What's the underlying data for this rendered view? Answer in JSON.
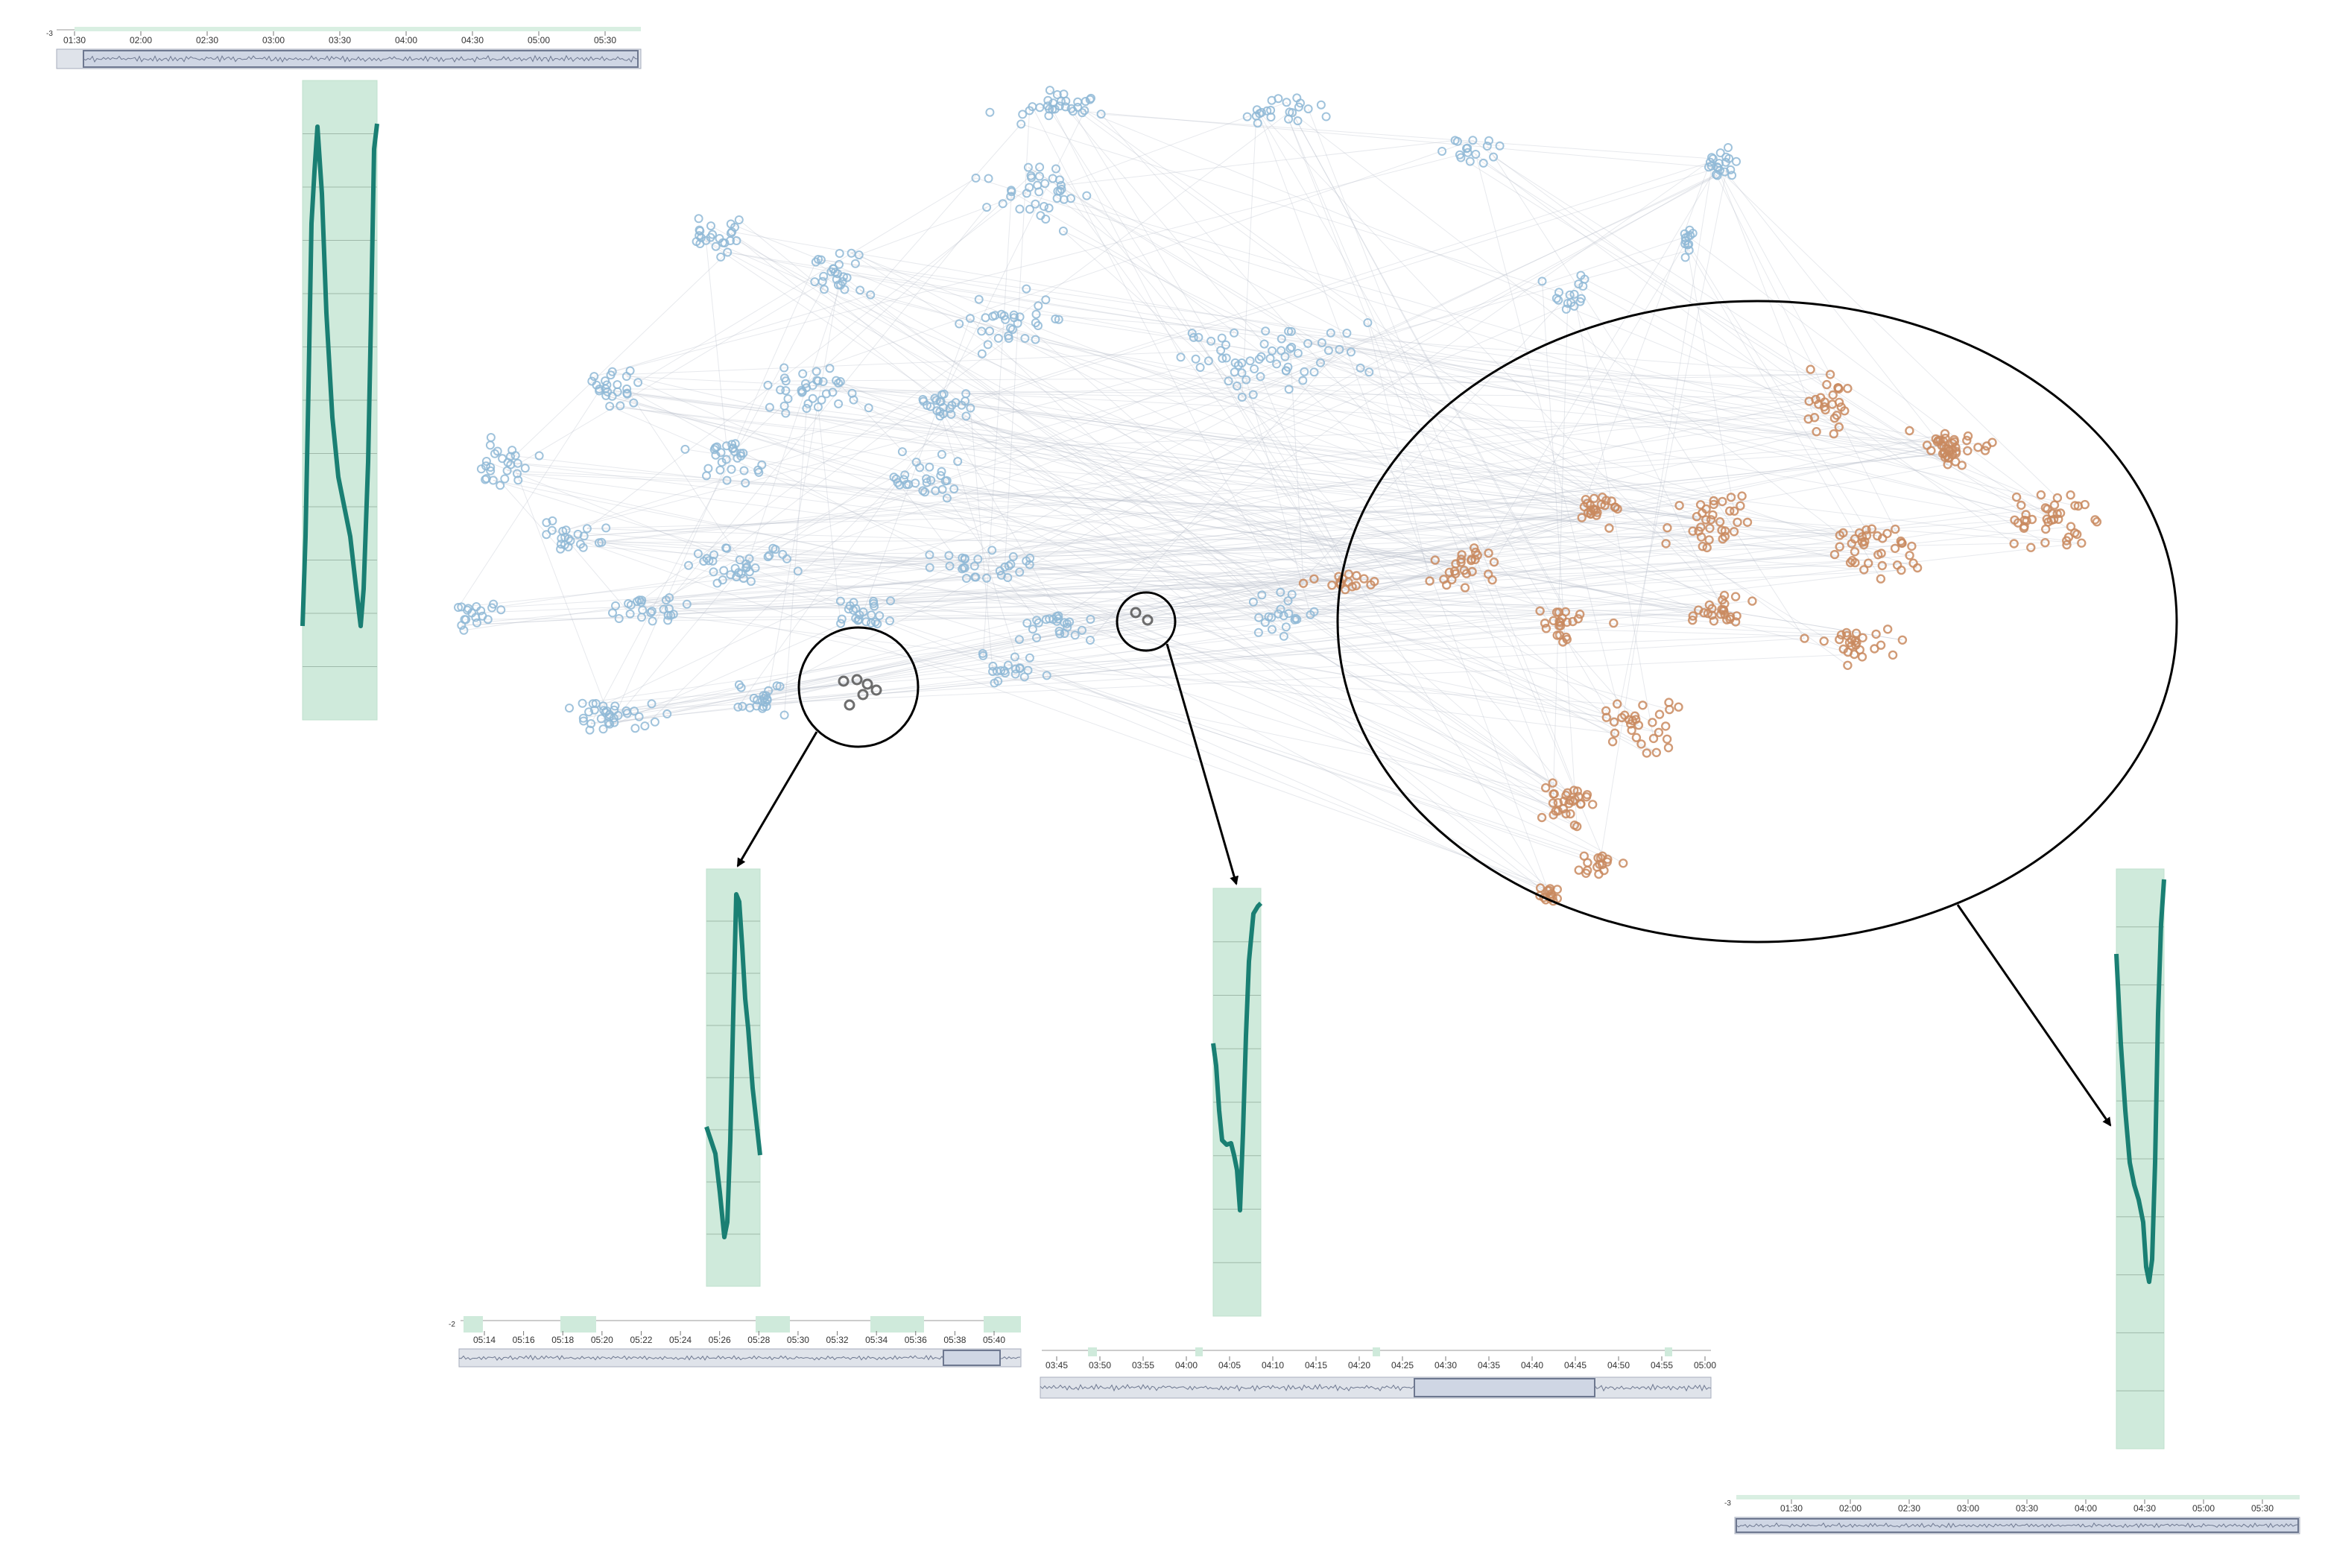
{
  "diagram": {
    "type": "scatter-embedding-with-sequence-insets",
    "point_groups": [
      {
        "name": "",
        "color": "#8fb8d6",
        "role": "background cluster"
      },
      {
        "name": "",
        "color": "#c98a5f",
        "role": "highlighted cluster"
      },
      {
        "name": "",
        "color": "#555555",
        "role": "selected small cluster"
      }
    ],
    "edge_color": "#b9bfcc",
    "series_color": "#1a7f73",
    "selection_fill": "#cfeadb"
  },
  "navigators": [
    {
      "id": "nav-top-left",
      "edge_label": "-3",
      "ticks": [
        "01:30",
        "02:00",
        "02:30",
        "03:00",
        "03:30",
        "04:00",
        "04:30",
        "05:00",
        "05:30"
      ]
    },
    {
      "id": "nav-bottom-left",
      "edge_label": "-2",
      "ticks": [
        "05:14",
        "05:16",
        "05:18",
        "05:20",
        "05:22",
        "05:24",
        "05:26",
        "05:28",
        "05:30",
        "05:32",
        "05:34",
        "05:36",
        "05:38",
        "05:40"
      ]
    },
    {
      "id": "nav-bottom-center",
      "edge_label": "",
      "ticks": [
        "03:45",
        "03:50",
        "03:55",
        "04:00",
        "04:05",
        "04:10",
        "04:15",
        "04:20",
        "04:25",
        "04:30",
        "04:35",
        "04:40",
        "04:45",
        "04:50",
        "04:55",
        "05:00"
      ]
    },
    {
      "id": "nav-bottom-right",
      "edge_label": "-3",
      "ticks": [
        "01:30",
        "02:00",
        "02:30",
        "03:00",
        "03:30",
        "04:00",
        "04:30",
        "05:00",
        "05:30"
      ]
    }
  ]
}
